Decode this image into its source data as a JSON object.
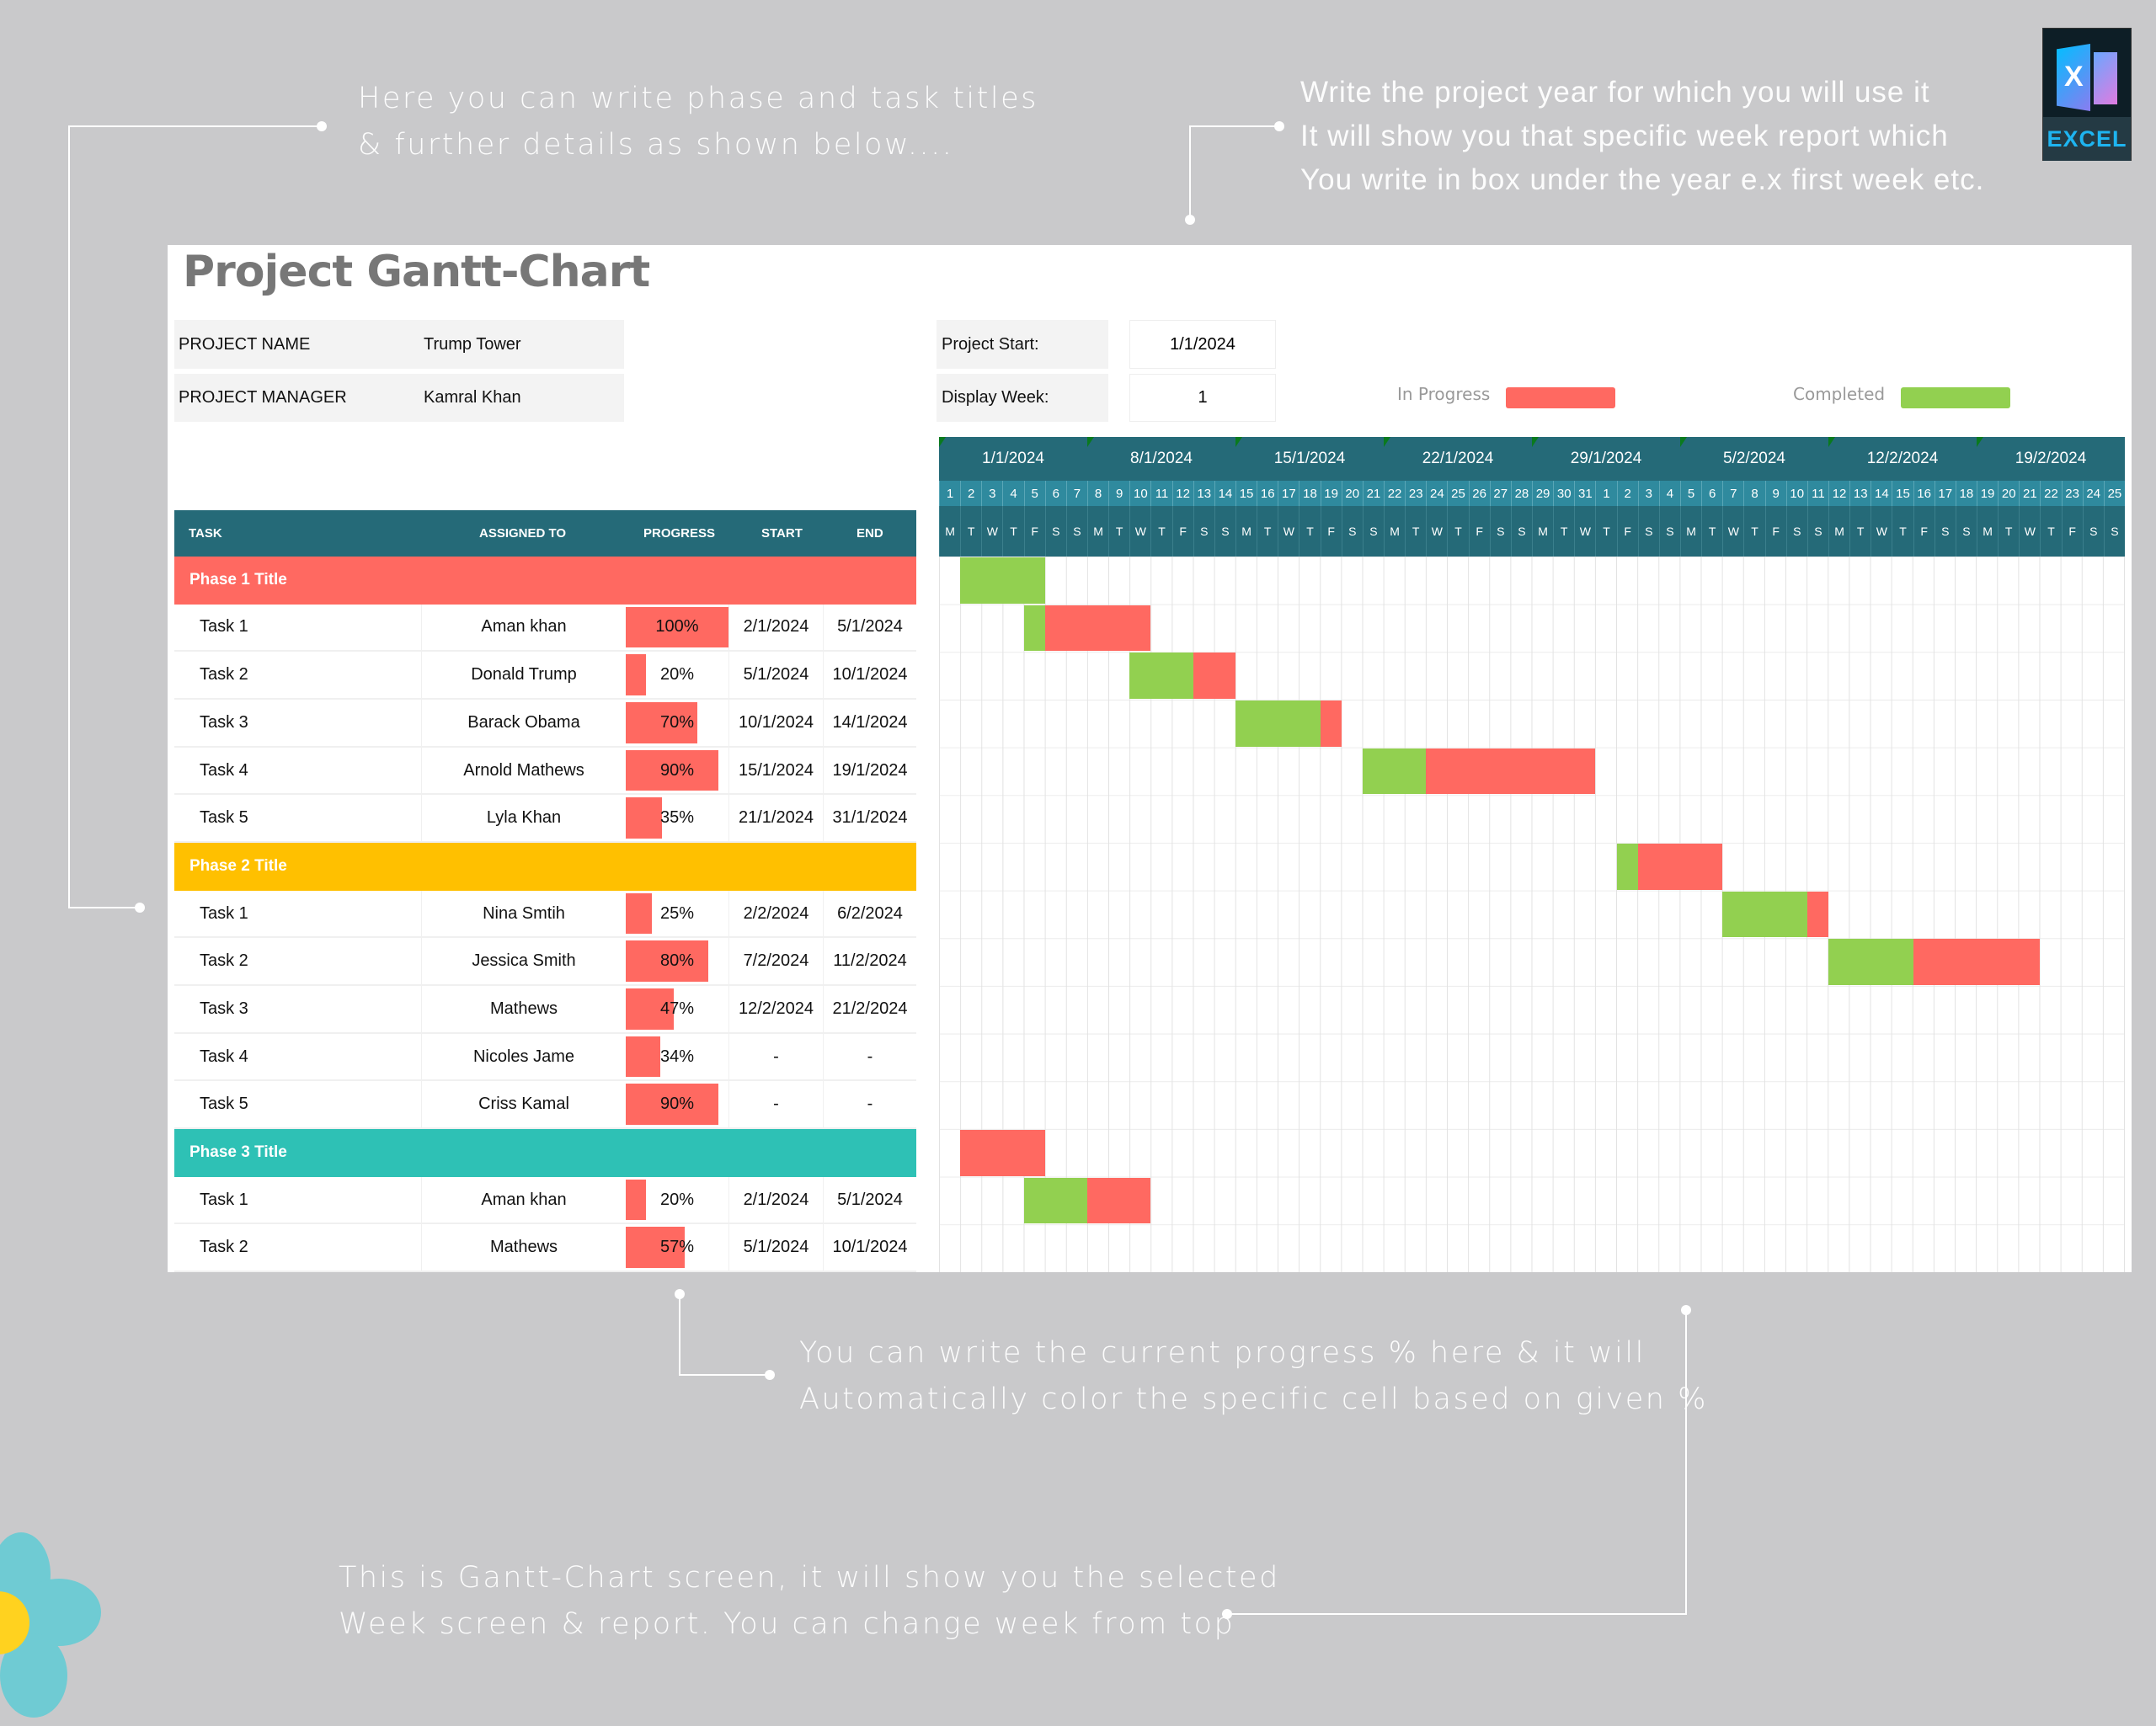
{
  "annotations": [
    {
      "lines": [
        "Here you can write phase and task titles",
        "& further details as shown below...."
      ]
    },
    {
      "lines": [
        "Write the project year for which you will use it",
        "It will show you that specific week report which",
        "You write in box under the year e.x first week etc."
      ]
    },
    {
      "lines": [
        "You can write the current progress % here & it will",
        "Automatically color the specific cell based on given %"
      ]
    },
    {
      "lines": [
        "This is Gantt-Chart screen, it will show you the selected",
        "Week screen & report. You can change week from top"
      ]
    }
  ],
  "logo": {
    "text": "EXCEL",
    "letter": "X"
  },
  "sheet": {
    "title": "Project Gantt-Chart",
    "project_name_label": "PROJECT NAME",
    "project_name": "Trump Tower",
    "project_manager_label": "PROJECT MANAGER",
    "project_manager": "Kamral Khan",
    "project_start_label": "Project Start:",
    "project_start": "1/1/2024",
    "display_week_label": "Display Week:",
    "display_week": "1",
    "legend": {
      "in_progress": "In Progress",
      "completed": "Completed"
    }
  },
  "colors": {
    "header": "#256a78",
    "day_row": "#2f8a9e",
    "in_progress": "#ff6961",
    "completed": "#92d050"
  },
  "table": {
    "headers": {
      "task": "TASK",
      "assigned": "ASSIGNED TO",
      "progress": "PROGRESS",
      "start": "START",
      "end": "END"
    },
    "phases": [
      {
        "title": "Phase 1 Title",
        "color": "#ff6961",
        "tasks": [
          {
            "task": "Task 1",
            "assigned": "Aman khan",
            "progress": "100%",
            "start": "2/1/2024",
            "end": "5/1/2024"
          },
          {
            "task": "Task 2",
            "assigned": "Donald Trump",
            "progress": "20%",
            "start": "5/1/2024",
            "end": "10/1/2024"
          },
          {
            "task": "Task 3",
            "assigned": "Barack Obama",
            "progress": "70%",
            "start": "10/1/2024",
            "end": "14/1/2024"
          },
          {
            "task": "Task 4",
            "assigned": "Arnold Mathews",
            "progress": "90%",
            "start": "15/1/2024",
            "end": "19/1/2024"
          },
          {
            "task": "Task 5",
            "assigned": "Lyla Khan",
            "progress": "35%",
            "start": "21/1/2024",
            "end": "31/1/2024"
          }
        ]
      },
      {
        "title": "Phase 2 Title",
        "color": "#ffc000",
        "tasks": [
          {
            "task": "Task 1",
            "assigned": "Nina Smtih",
            "progress": "25%",
            "start": "2/2/2024",
            "end": "6/2/2024"
          },
          {
            "task": "Task 2",
            "assigned": "Jessica Smith",
            "progress": "80%",
            "start": "7/2/2024",
            "end": "11/2/2024"
          },
          {
            "task": "Task 3",
            "assigned": "Mathews",
            "progress": "47%",
            "start": "12/2/2024",
            "end": "21/2/2024"
          },
          {
            "task": "Task 4",
            "assigned": "Nicoles Jame",
            "progress": "34%",
            "start": "-",
            "end": "-"
          },
          {
            "task": "Task 5",
            "assigned": "Criss Kamal",
            "progress": "90%",
            "start": "-",
            "end": "-"
          }
        ]
      },
      {
        "title": "Phase 3 Title",
        "color": "#2ec1b5",
        "tasks": [
          {
            "task": "Task 1",
            "assigned": "Aman khan",
            "progress": "20%",
            "start": "2/1/2024",
            "end": "5/1/2024"
          },
          {
            "task": "Task 2",
            "assigned": "Mathews",
            "progress": "57%",
            "start": "5/1/2024",
            "end": "10/1/2024"
          }
        ]
      }
    ]
  },
  "timeline": {
    "weeks": [
      "1/1/2024",
      "8/1/2024",
      "15/1/2024",
      "22/1/2024",
      "29/1/2024",
      "5/2/2024",
      "12/2/2024",
      "19/2/2024"
    ],
    "days": [
      "1",
      "2",
      "3",
      "4",
      "5",
      "6",
      "7",
      "8",
      "9",
      "10",
      "11",
      "12",
      "13",
      "14",
      "15",
      "16",
      "17",
      "18",
      "19",
      "20",
      "21",
      "22",
      "23",
      "24",
      "25",
      "26",
      "27",
      "28",
      "29",
      "30",
      "31",
      "1",
      "2",
      "3",
      "4",
      "5",
      "6",
      "7",
      "8",
      "9",
      "10",
      "11",
      "12",
      "13",
      "14",
      "15",
      "16",
      "17",
      "18",
      "19",
      "20",
      "21",
      "22",
      "23",
      "24",
      "25"
    ],
    "weekdays": [
      "M",
      "T",
      "W",
      "T",
      "F",
      "S",
      "S",
      "M",
      "T",
      "W",
      "T",
      "F",
      "S",
      "S",
      "M",
      "T",
      "W",
      "T",
      "F",
      "S",
      "S",
      "M",
      "T",
      "W",
      "T",
      "F",
      "S",
      "S",
      "M",
      "T",
      "W",
      "T",
      "F",
      "S",
      "S",
      "M",
      "T",
      "W",
      "T",
      "F",
      "S",
      "S",
      "M",
      "T",
      "W",
      "T",
      "F",
      "S",
      "S",
      "M",
      "T",
      "W",
      "T",
      "F",
      "S",
      "S"
    ]
  }
}
